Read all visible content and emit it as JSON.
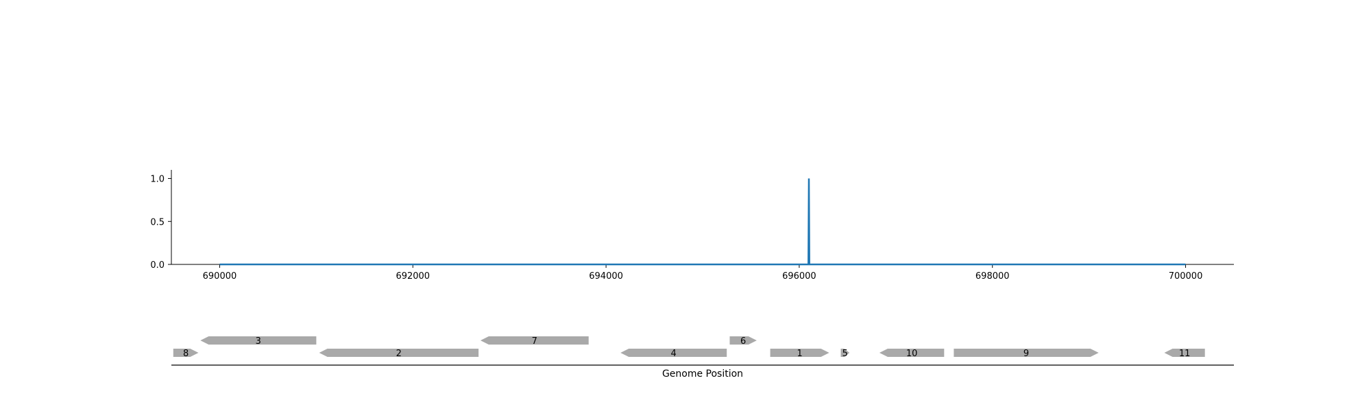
{
  "chart_data": [
    {
      "type": "line",
      "title": "",
      "xlabel": "",
      "ylabel": "",
      "xlim": [
        689500,
        700500
      ],
      "ylim": [
        0,
        1.1
      ],
      "x_ticks": [
        690000,
        692000,
        694000,
        696000,
        698000,
        700000
      ],
      "x_tick_labels": [
        "690000",
        "692000",
        "694000",
        "696000",
        "698000",
        "700000"
      ],
      "y_ticks": [
        0,
        0.5,
        1
      ],
      "y_tick_labels": [
        "0.0",
        "0.5",
        "1.0"
      ],
      "grid": false,
      "legend": "none",
      "series": [
        {
          "color": "#1f77b4",
          "x": [
            690000,
            696095,
            696100,
            696105,
            700000
          ],
          "y": [
            0,
            0,
            1,
            0,
            0
          ]
        }
      ]
    },
    {
      "type": "gene-track",
      "xlabel": "Genome Position",
      "xlim": [
        689500,
        700500
      ],
      "gene_color": "#a9a9a9",
      "genes": [
        {
          "label": "8",
          "start": 689520,
          "end": 689780,
          "strand": 1,
          "row": 0
        },
        {
          "label": "3",
          "start": 689800,
          "end": 691000,
          "strand": -1,
          "row": 1
        },
        {
          "label": "2",
          "start": 691030,
          "end": 692680,
          "strand": -1,
          "row": 0
        },
        {
          "label": "7",
          "start": 692700,
          "end": 693820,
          "strand": -1,
          "row": 1
        },
        {
          "label": "4",
          "start": 694150,
          "end": 695250,
          "strand": -1,
          "row": 0
        },
        {
          "label": "6",
          "start": 695280,
          "end": 695560,
          "strand": 1,
          "row": 1
        },
        {
          "label": "1",
          "start": 695700,
          "end": 696310,
          "strand": 1,
          "row": 0
        },
        {
          "label": "5",
          "start": 696430,
          "end": 696520,
          "strand": 1,
          "row": 0
        },
        {
          "label": "10",
          "start": 696830,
          "end": 697500,
          "strand": -1,
          "row": 0
        },
        {
          "label": "9",
          "start": 697600,
          "end": 699100,
          "strand": 1,
          "row": 0
        },
        {
          "label": "11",
          "start": 699780,
          "end": 700200,
          "strand": -1,
          "row": 0
        }
      ]
    }
  ]
}
